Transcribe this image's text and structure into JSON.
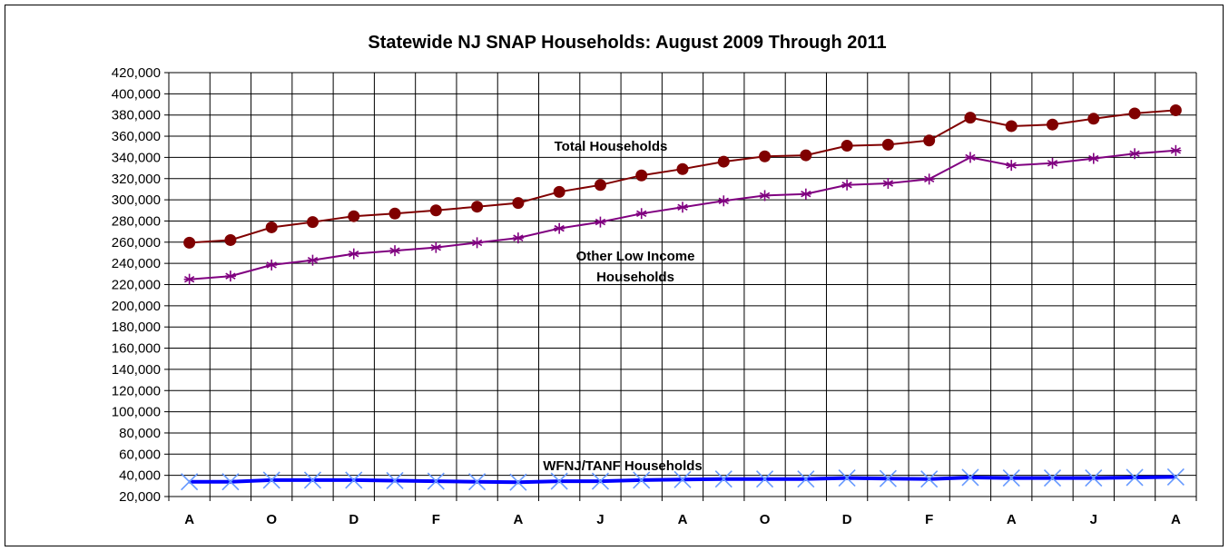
{
  "chart_data": {
    "type": "line",
    "title": "Statewide NJ SNAP Households: August 2009 Through 2011",
    "xlabel": "",
    "ylabel": "",
    "ylim": [
      20000,
      420000
    ],
    "yticks": [
      20000,
      40000,
      60000,
      80000,
      100000,
      120000,
      140000,
      160000,
      180000,
      200000,
      220000,
      240000,
      260000,
      280000,
      300000,
      320000,
      340000,
      360000,
      380000,
      400000,
      420000
    ],
    "ytick_labels": [
      "20,000",
      "40,000",
      "60,000",
      "80,000",
      "100,000",
      "120,000",
      "140,000",
      "160,000",
      "180,000",
      "200,000",
      "220,000",
      "240,000",
      "260,000",
      "280,000",
      "300,000",
      "320,000",
      "340,000",
      "360,000",
      "380,000",
      "400,000",
      "420,000"
    ],
    "x_tick_labels": [
      "A",
      "",
      "O",
      "",
      "D",
      "",
      "F",
      "",
      "A",
      "",
      "J",
      "",
      "A",
      "",
      "O",
      "",
      "D",
      "",
      "F",
      "",
      "A",
      "",
      "J",
      "",
      "A"
    ],
    "grid": true,
    "series": [
      {
        "key": "total",
        "color": "#800000",
        "marker": "circle",
        "values": [
          259500,
          262000,
          274000,
          279000,
          284500,
          287000,
          290000,
          293500,
          297000,
          307500,
          314000,
          323000,
          329000,
          336000,
          341000,
          342000,
          351000,
          352000,
          356000,
          377500,
          369500,
          371000,
          376500,
          381500,
          384500
        ]
      },
      {
        "key": "other",
        "color": "#800080",
        "marker": "asterisk",
        "values": [
          225000,
          228000,
          238500,
          243000,
          249000,
          252000,
          255000,
          259500,
          264000,
          273000,
          279000,
          287000,
          293000,
          299000,
          304000,
          305500,
          314000,
          315500,
          319500,
          340000,
          332500,
          334500,
          339000,
          343500,
          346500
        ]
      },
      {
        "key": "tanf",
        "color": "#0000ff",
        "marker": "x",
        "marker_color": "#6699ff",
        "values": [
          34000,
          34000,
          35500,
          35500,
          35500,
          35000,
          34500,
          34000,
          33500,
          34500,
          34500,
          35500,
          36000,
          36500,
          36500,
          36500,
          37500,
          37000,
          36500,
          38000,
          37500,
          37500,
          37500,
          38000,
          38500
        ]
      }
    ],
    "annotations": {
      "total": "Total Households",
      "other_line1": "Other Low Income",
      "other_line2": "Households",
      "tanf": "WFNJ/TANF Households"
    }
  }
}
